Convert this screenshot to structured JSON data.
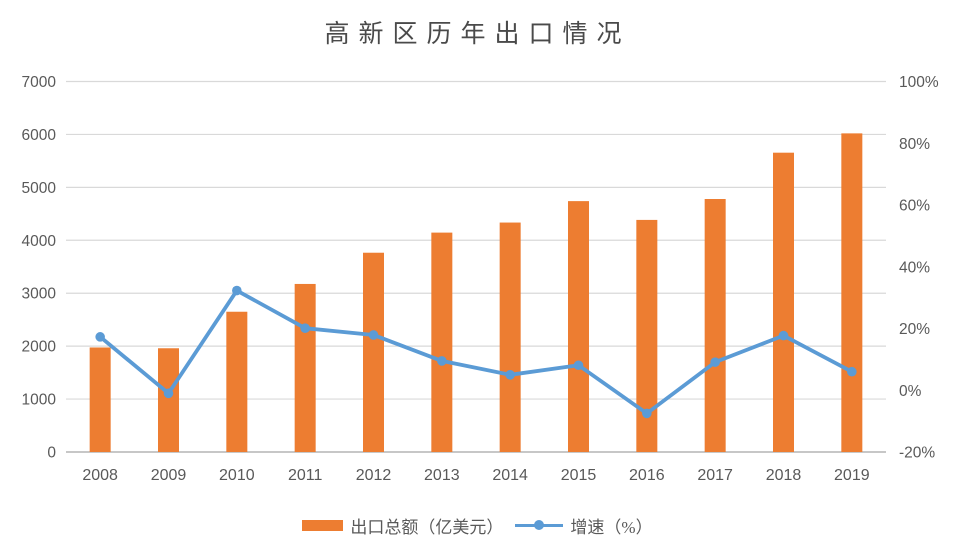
{
  "title": "高新区历年出口情况",
  "colors": {
    "bar": "#ED7D31",
    "line": "#5B9BD5",
    "grid": "#D9D9D9",
    "axis_line": "#BFBFBF",
    "tick_text": "#595959",
    "title_text": "#4A4A4A",
    "background": "#FFFFFF"
  },
  "chart_data": {
    "type": "bar+line combo",
    "title": "高新区历年出口情况",
    "categories": [
      "2008",
      "2009",
      "2010",
      "2011",
      "2012",
      "2013",
      "2014",
      "2015",
      "2016",
      "2017",
      "2018",
      "2019"
    ],
    "series": [
      {
        "name": "出口总额（亿美元）",
        "type": "bar",
        "axis": "left",
        "color": "#ED7D31",
        "values": [
          1975,
          1960,
          2650,
          3175,
          3765,
          4145,
          4335,
          4740,
          4385,
          4780,
          5655,
          6020
        ]
      },
      {
        "name": "增速（%）",
        "type": "line",
        "axis": "right",
        "color": "#5B9BD5",
        "marker": "circle",
        "values": [
          17.3,
          -1,
          32.3,
          20.1,
          17.9,
          9.5,
          5,
          8.1,
          -7.5,
          9.1,
          17.7,
          6
        ]
      }
    ],
    "left_axis": {
      "min": 0,
      "max": 7000,
      "step": 1000,
      "tick_labels": [
        "0",
        "1000",
        "2000",
        "3000",
        "4000",
        "5000",
        "6000",
        "7000"
      ]
    },
    "right_axis": {
      "min": -20,
      "max": 100,
      "step": 20,
      "tick_labels": [
        "-20%",
        "0%",
        "20%",
        "40%",
        "60%",
        "80%",
        "100%"
      ]
    },
    "grid": true,
    "legend_position": "bottom"
  },
  "legend": {
    "items": [
      {
        "label": "出口总额（亿美元）",
        "marker": "bar-swatch"
      },
      {
        "label": "增速（%）",
        "marker": "line-dot"
      }
    ]
  }
}
